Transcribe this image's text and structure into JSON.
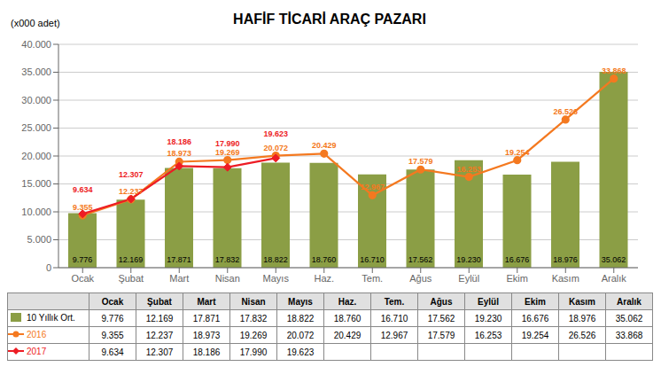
{
  "chart_data": {
    "type": "bar",
    "title": "HAFİF TİCARİ ARAÇ PAZARI",
    "y_label": "(x000 adet)",
    "categories": [
      "Ocak",
      "Şubat",
      "Mart",
      "Nisan",
      "Mayıs",
      "Haz.",
      "Tem.",
      "Ağus",
      "Eylül",
      "Ekim",
      "Kasım",
      "Aralık"
    ],
    "series": [
      {
        "name": "10 Yıllık Ort.",
        "type": "bar",
        "color": "#8b9e45",
        "values": [
          9776,
          12169,
          17871,
          17832,
          18822,
          18760,
          16710,
          17562,
          19230,
          16676,
          18976,
          35062
        ],
        "value_labels": [
          "9.776",
          "12.169",
          "17.871",
          "17.832",
          "18.822",
          "18.760",
          "16.710",
          "17.562",
          "19.230",
          "16.676",
          "18.976",
          "35.062"
        ]
      },
      {
        "name": "2016",
        "type": "line",
        "color": "#f47920",
        "marker": "circle",
        "values": [
          9355,
          12237,
          18973,
          19269,
          20072,
          20429,
          12967,
          17579,
          16253,
          19254,
          26526,
          33868
        ],
        "value_labels": [
          "9.355",
          "12.237",
          "18.973",
          "19.269",
          "20.072",
          "20.429",
          "12.967",
          "17.579",
          "16.253",
          "19.254",
          "26.526",
          "33.868"
        ]
      },
      {
        "name": "2017",
        "type": "line",
        "color": "#ed1c24",
        "marker": "diamond",
        "values": [
          9634,
          12307,
          18186,
          17990,
          19623,
          null,
          null,
          null,
          null,
          null,
          null,
          null
        ],
        "value_labels": [
          "9.634",
          "12.307",
          "18.186",
          "17.990",
          "19.623",
          null,
          null,
          null,
          null,
          null,
          null,
          null
        ]
      }
    ],
    "ylim": [
      0,
      40000
    ],
    "yticks": [
      0,
      {
        "value": 5000,
        "label": "5.000"
      },
      {
        "value": 10000,
        "label": "10.000"
      },
      {
        "value": 15000,
        "label": "15.000"
      },
      {
        "value": 20000,
        "label": "20.000"
      },
      {
        "value": 25000,
        "label": "25.000"
      },
      {
        "value": 30000,
        "label": "30.000"
      },
      {
        "value": 35000,
        "label": "35.000"
      },
      {
        "value": 40000,
        "label": "40.000"
      }
    ],
    "grid": true,
    "data_labels": true
  }
}
